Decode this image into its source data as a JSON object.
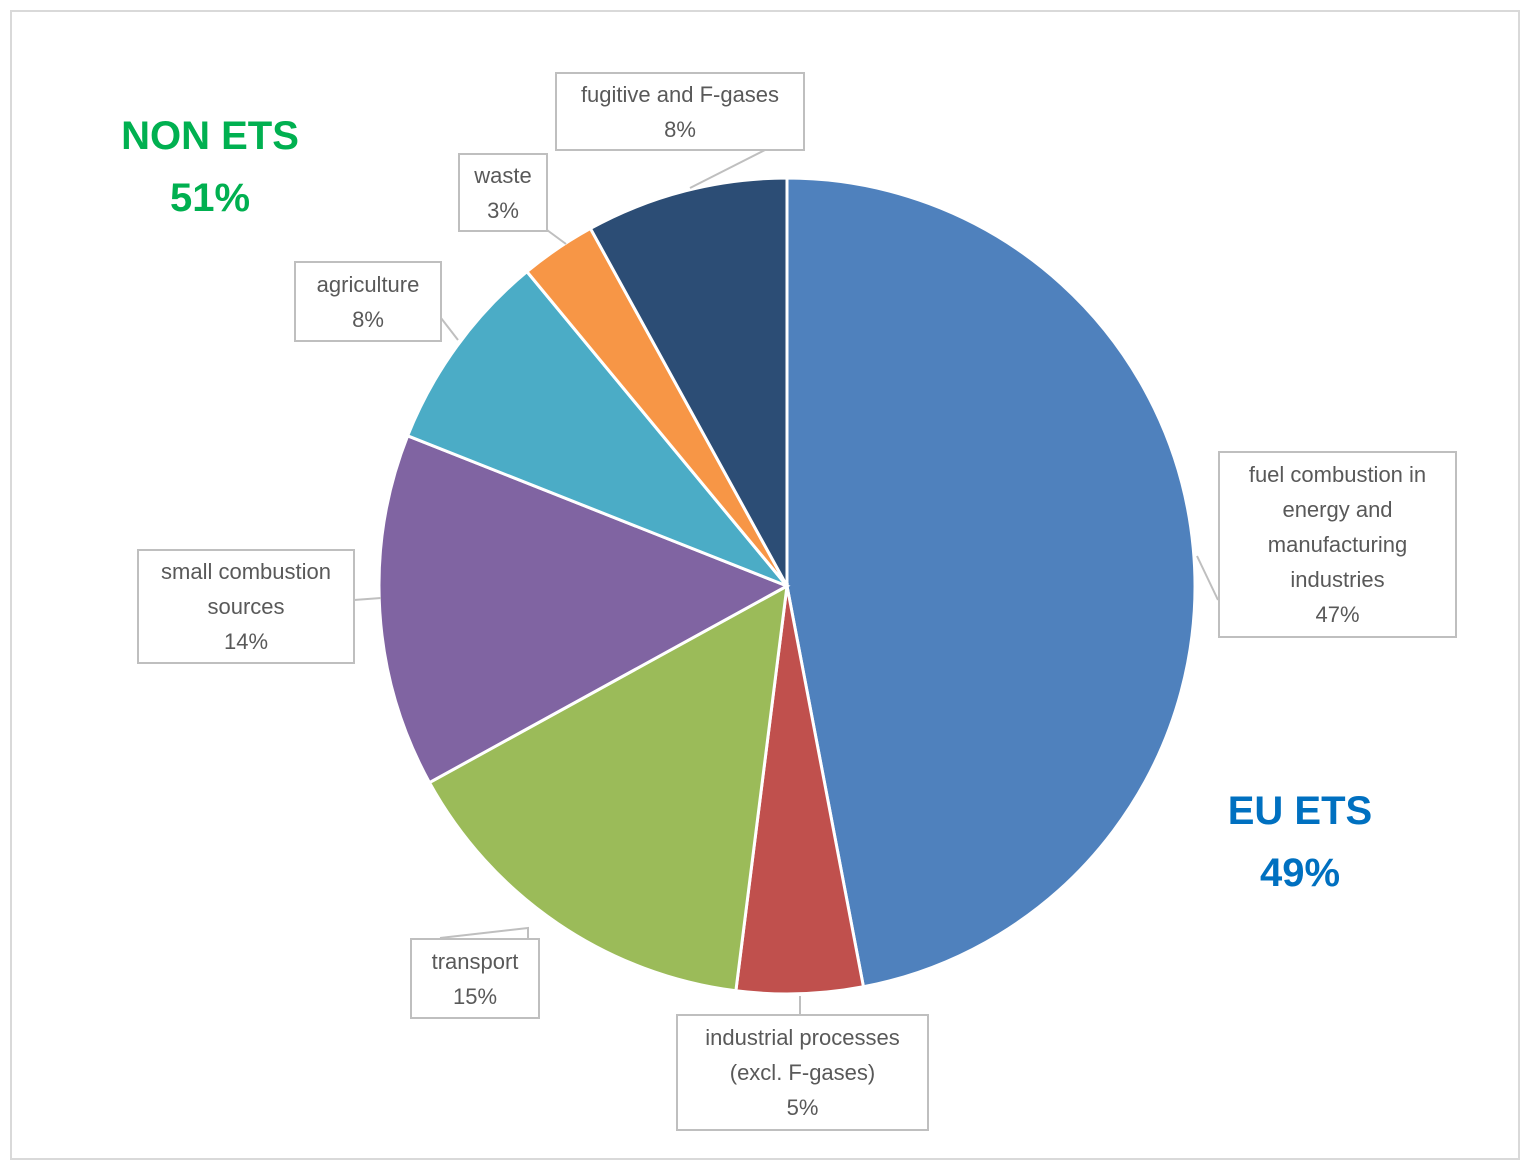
{
  "chart_data": {
    "type": "pie",
    "categories": [
      "fuel combustion in energy and manufacturing industries",
      "industrial processes (excl. F-gases)",
      "transport",
      "small combustion sources",
      "agriculture",
      "waste",
      "fugitive and F-gases"
    ],
    "values": [
      47,
      5,
      15,
      14,
      8,
      3,
      8
    ],
    "value_labels": [
      "47%",
      "5%",
      "15%",
      "14%",
      "8%",
      "3%",
      "8%"
    ],
    "colors": [
      "#4f81bd",
      "#c0504d",
      "#9bbb59",
      "#8064a2",
      "#4bacc6",
      "#f79646",
      "#2c4d75"
    ],
    "annotations": [
      {
        "text": "NON ETS",
        "value_label": "51%",
        "color": "#00b050"
      },
      {
        "text": "EU ETS",
        "value_label": "49%",
        "color": "#0070c0"
      }
    ]
  }
}
